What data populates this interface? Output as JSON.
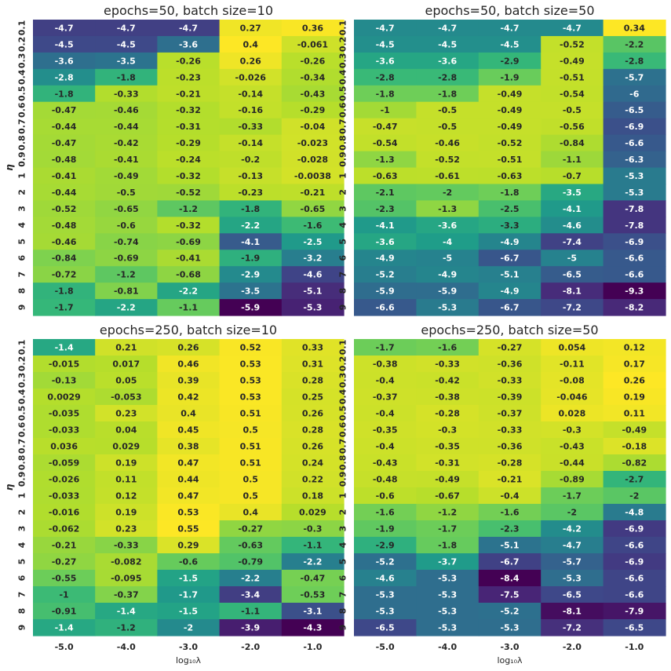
{
  "chart_data": [
    {
      "type": "heatmap",
      "title": "epochs=50, batch size=10",
      "ylabel": "η",
      "xlabel": "",
      "x": [
        "-5.0",
        "-4.0",
        "-3.0",
        "-2.0",
        "-1.0"
      ],
      "y": [
        "0.1",
        "0.2",
        "0.3",
        "0.4",
        "0.5",
        "0.6",
        "0.7",
        "0.8",
        "0.9",
        "1",
        "2",
        "3",
        "4",
        "5",
        "6",
        "7",
        "8",
        "9"
      ],
      "values": [
        [
          -4.7,
          -4.7,
          -4.7,
          0.27,
          0.36
        ],
        [
          -4.5,
          -4.5,
          -3.6,
          0.4,
          -0.061
        ],
        [
          -3.6,
          -3.5,
          -0.26,
          0.26,
          -0.26
        ],
        [
          -2.8,
          -1.8,
          -0.23,
          -0.026,
          -0.34
        ],
        [
          -1.8,
          -0.33,
          -0.21,
          -0.14,
          -0.43
        ],
        [
          -0.47,
          -0.46,
          -0.32,
          -0.16,
          -0.29
        ],
        [
          -0.44,
          -0.44,
          -0.31,
          -0.33,
          -0.04
        ],
        [
          -0.47,
          -0.42,
          -0.29,
          -0.14,
          -0.023
        ],
        [
          -0.48,
          -0.41,
          -0.24,
          -0.2,
          -0.028
        ],
        [
          -0.41,
          -0.49,
          -0.32,
          -0.13,
          -0.0038
        ],
        [
          -0.44,
          -0.5,
          -0.52,
          -0.23,
          -0.21
        ],
        [
          -0.52,
          -0.65,
          -1.2,
          -1.8,
          -0.65
        ],
        [
          -0.48,
          -0.6,
          -0.32,
          -2.2,
          -1.6
        ],
        [
          -0.46,
          -0.74,
          -0.69,
          -4.1,
          -2.5
        ],
        [
          -0.84,
          -0.69,
          -0.41,
          -1.9,
          -3.2
        ],
        [
          -0.72,
          -1.2,
          -0.68,
          -2.9,
          -4.6
        ],
        [
          -1.8,
          -0.81,
          -2.2,
          -3.5,
          -5.1
        ],
        [
          -1.7,
          -2.2,
          -1.1,
          -5.9,
          -5.3
        ]
      ]
    },
    {
      "type": "heatmap",
      "title": "epochs=50, batch size=50",
      "ylabel": "",
      "xlabel": "",
      "x": [
        "-5.0",
        "-4.0",
        "-3.0",
        "-2.0",
        "-1.0"
      ],
      "y": [
        "0.1",
        "0.2",
        "0.3",
        "0.4",
        "0.5",
        "0.6",
        "0.7",
        "0.8",
        "0.9",
        "1",
        "2",
        "3",
        "4",
        "5",
        "6",
        "7",
        "8",
        "9"
      ],
      "values": [
        [
          -4.7,
          -4.7,
          -4.7,
          -4.7,
          0.34
        ],
        [
          -4.5,
          -4.5,
          -4.5,
          -0.52,
          -2.2
        ],
        [
          -3.6,
          -3.6,
          -2.9,
          -0.49,
          -2.8
        ],
        [
          -2.8,
          -2.8,
          -1.9,
          -0.51,
          -5.7
        ],
        [
          -1.8,
          -1.8,
          -0.49,
          -0.54,
          -6
        ],
        [
          -1,
          -0.5,
          -0.49,
          -0.5,
          -6.5
        ],
        [
          -0.47,
          -0.5,
          -0.49,
          -0.56,
          -6.9
        ],
        [
          -0.54,
          -0.46,
          -0.52,
          -0.84,
          -6.6
        ],
        [
          -1.3,
          -0.52,
          -0.51,
          -1.1,
          -6.3
        ],
        [
          -0.63,
          -0.61,
          -0.63,
          -0.7,
          -5.3
        ],
        [
          -2.1,
          -2,
          -1.8,
          -3.5,
          -5.3
        ],
        [
          -2.3,
          -1.3,
          -2.5,
          -4.1,
          -7.8
        ],
        [
          -4.1,
          -3.6,
          -3.3,
          -4.6,
          -7.8
        ],
        [
          -3.6,
          -4,
          -4.9,
          -7.4,
          -6.9
        ],
        [
          -4.9,
          -5,
          -6.7,
          -5,
          -6.6
        ],
        [
          -5.2,
          -4.9,
          -5.1,
          -6.5,
          -6.6
        ],
        [
          -5.9,
          -5.9,
          -4.9,
          -8.1,
          -9.3
        ],
        [
          -6.6,
          -5.3,
          -6.7,
          -7.2,
          -8.2
        ]
      ]
    },
    {
      "type": "heatmap",
      "title": "epochs=250, batch size=10",
      "ylabel": "η",
      "xlabel": "log₁₀λ",
      "x": [
        "-5.0",
        "-4.0",
        "-3.0",
        "-2.0",
        "-1.0"
      ],
      "y": [
        "0.1",
        "0.2",
        "0.3",
        "0.4",
        "0.5",
        "0.6",
        "0.7",
        "0.8",
        "0.9",
        "1",
        "2",
        "3",
        "4",
        "5",
        "6",
        "7",
        "8",
        "9"
      ],
      "values": [
        [
          -1.4,
          0.21,
          0.26,
          0.52,
          0.33
        ],
        [
          -0.015,
          0.017,
          0.46,
          0.53,
          0.31
        ],
        [
          -0.13,
          0.05,
          0.39,
          0.53,
          0.28
        ],
        [
          0.0029,
          -0.053,
          0.42,
          0.53,
          0.25
        ],
        [
          -0.035,
          0.23,
          0.4,
          0.51,
          0.26
        ],
        [
          -0.033,
          0.04,
          0.45,
          0.5,
          0.28
        ],
        [
          0.036,
          0.029,
          0.38,
          0.51,
          0.26
        ],
        [
          -0.059,
          0.19,
          0.47,
          0.51,
          0.24
        ],
        [
          -0.026,
          0.11,
          0.44,
          0.5,
          0.22
        ],
        [
          -0.033,
          0.12,
          0.47,
          0.5,
          0.18
        ],
        [
          -0.016,
          0.19,
          0.53,
          0.4,
          0.029
        ],
        [
          -0.062,
          0.23,
          0.55,
          -0.27,
          -0.3
        ],
        [
          -0.21,
          -0.33,
          0.29,
          -0.63,
          -1.1
        ],
        [
          -0.27,
          -0.082,
          -0.6,
          -0.79,
          -2.2
        ],
        [
          -0.55,
          -0.095,
          -1.5,
          -2.2,
          -0.47
        ],
        [
          -1,
          -0.37,
          -1.7,
          -3.4,
          -0.53
        ],
        [
          -0.91,
          -1.4,
          -1.5,
          -1.1,
          -3.1
        ],
        [
          -1.4,
          -1.2,
          -2,
          -3.9,
          -4.3
        ]
      ]
    },
    {
      "type": "heatmap",
      "title": "epochs=250, batch size=50",
      "ylabel": "",
      "xlabel": "log₁₀λ",
      "x": [
        "-5.0",
        "-4.0",
        "-3.0",
        "-2.0",
        "-1.0"
      ],
      "y": [
        "0.1",
        "0.2",
        "0.3",
        "0.4",
        "0.5",
        "0.6",
        "0.7",
        "0.8",
        "0.9",
        "1",
        "2",
        "3",
        "4",
        "5",
        "6",
        "7",
        "8",
        "9"
      ],
      "values": [
        [
          -1.7,
          -1.6,
          -0.27,
          0.054,
          0.12
        ],
        [
          -0.38,
          -0.33,
          -0.36,
          -0.11,
          0.17
        ],
        [
          -0.4,
          -0.42,
          -0.33,
          -0.08,
          0.26
        ],
        [
          -0.37,
          -0.38,
          -0.39,
          -0.046,
          0.19
        ],
        [
          -0.4,
          -0.28,
          -0.37,
          0.028,
          0.11
        ],
        [
          -0.35,
          -0.3,
          -0.33,
          -0.3,
          -0.49
        ],
        [
          -0.4,
          -0.35,
          -0.36,
          -0.43,
          -0.18
        ],
        [
          -0.43,
          -0.31,
          -0.28,
          -0.44,
          -0.82
        ],
        [
          -0.48,
          -0.49,
          -0.21,
          -0.89,
          -2.7
        ],
        [
          -0.6,
          -0.67,
          -0.4,
          -1.7,
          -2
        ],
        [
          -1.6,
          -1.2,
          -1.6,
          -2,
          -4.8
        ],
        [
          -1.9,
          -1.7,
          -2.3,
          -4.2,
          -6.9
        ],
        [
          -2.9,
          -1.8,
          -5.1,
          -4.7,
          -6.6
        ],
        [
          -5.2,
          -3.7,
          -6.7,
          -5.7,
          -6.9
        ],
        [
          -4.6,
          -5.3,
          -8.4,
          -5.3,
          -6.6
        ],
        [
          -5.3,
          -5.3,
          -7.5,
          -6.5,
          -6.6
        ],
        [
          -5.3,
          -5.3,
          -5.2,
          -8.1,
          -7.9
        ],
        [
          -6.5,
          -5.3,
          -5.3,
          -7.2,
          -6.5
        ]
      ]
    }
  ]
}
